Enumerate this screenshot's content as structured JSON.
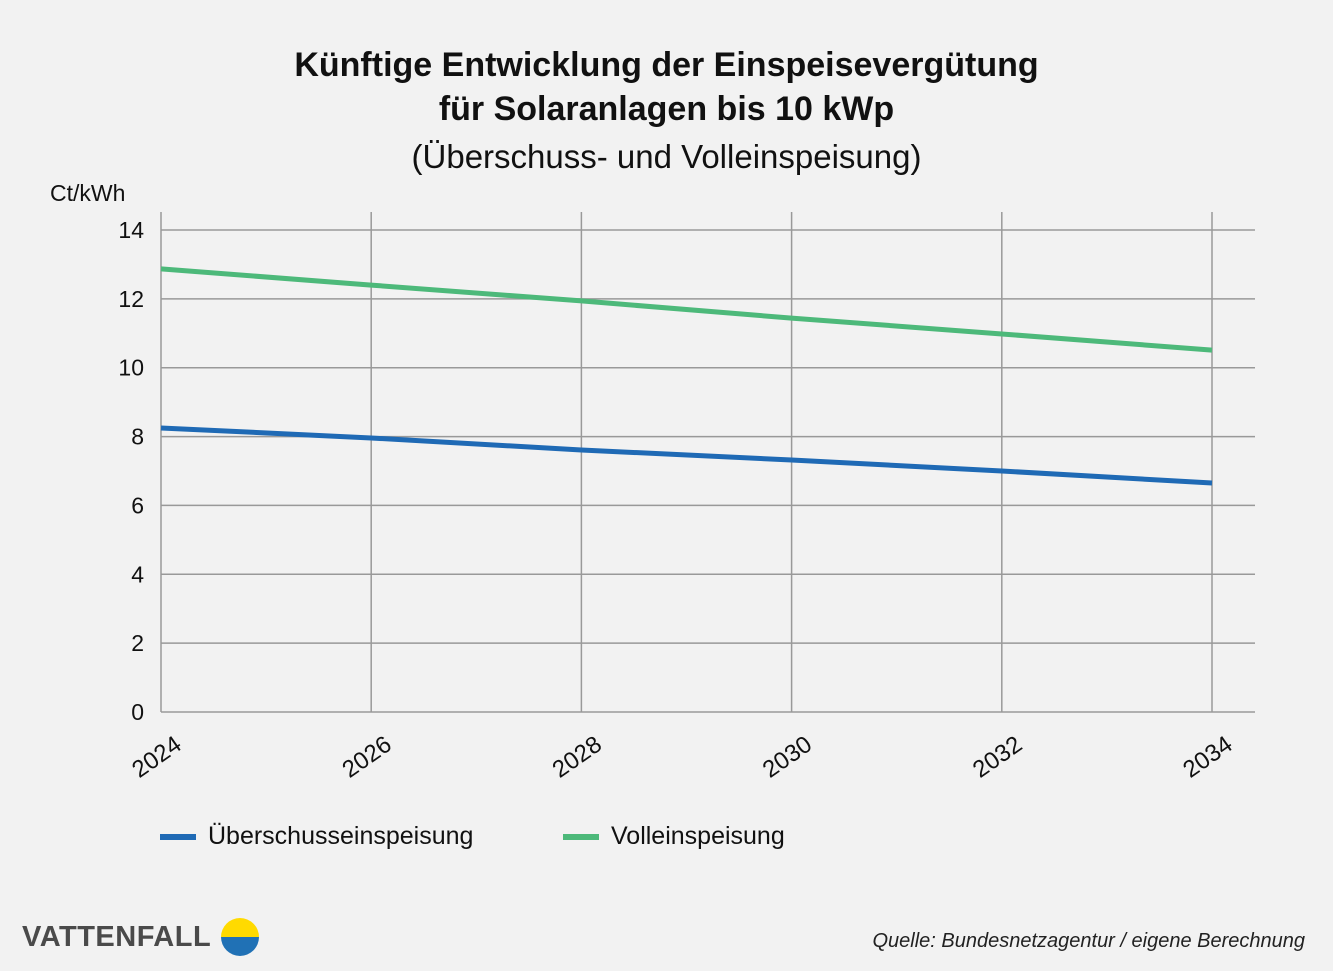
{
  "chart_data": {
    "type": "line",
    "title": "Künftige Entwicklung der Einspeisevergütung",
    "title_line2": "für Solaranlagen bis 10 kWp",
    "subtitle": "(Überschuss- und Volleinspeisung)",
    "ylabel": "Ct/kWh",
    "xlabel": "",
    "x": [
      2024,
      2026,
      2028,
      2030,
      2032,
      2034
    ],
    "x_tick_labels": [
      "2024",
      "2026",
      "2028",
      "2030",
      "2032",
      "2034"
    ],
    "y_tick_labels": [
      "0",
      "2",
      "4",
      "6",
      "8",
      "10",
      "12",
      "14"
    ],
    "ylim": [
      0,
      14
    ],
    "xlim": [
      2024,
      2034
    ],
    "grid": true,
    "legend_position": "bottom-left",
    "series": [
      {
        "name": "Überschusseinspeisung",
        "color": "#1f6ab5",
        "values": [
          8.25,
          7.96,
          7.61,
          7.32,
          7.0,
          6.65
        ]
      },
      {
        "name": "Volleinspeisung",
        "color": "#4db97a",
        "values": [
          12.87,
          12.4,
          11.94,
          11.44,
          10.98,
          10.51
        ]
      }
    ]
  },
  "source": "Quelle: Bundesnetzagentur / eigene Berechnung",
  "logo": {
    "text": "VATTENFALL",
    "colors": [
      "#ffda00",
      "#2071b5"
    ]
  }
}
